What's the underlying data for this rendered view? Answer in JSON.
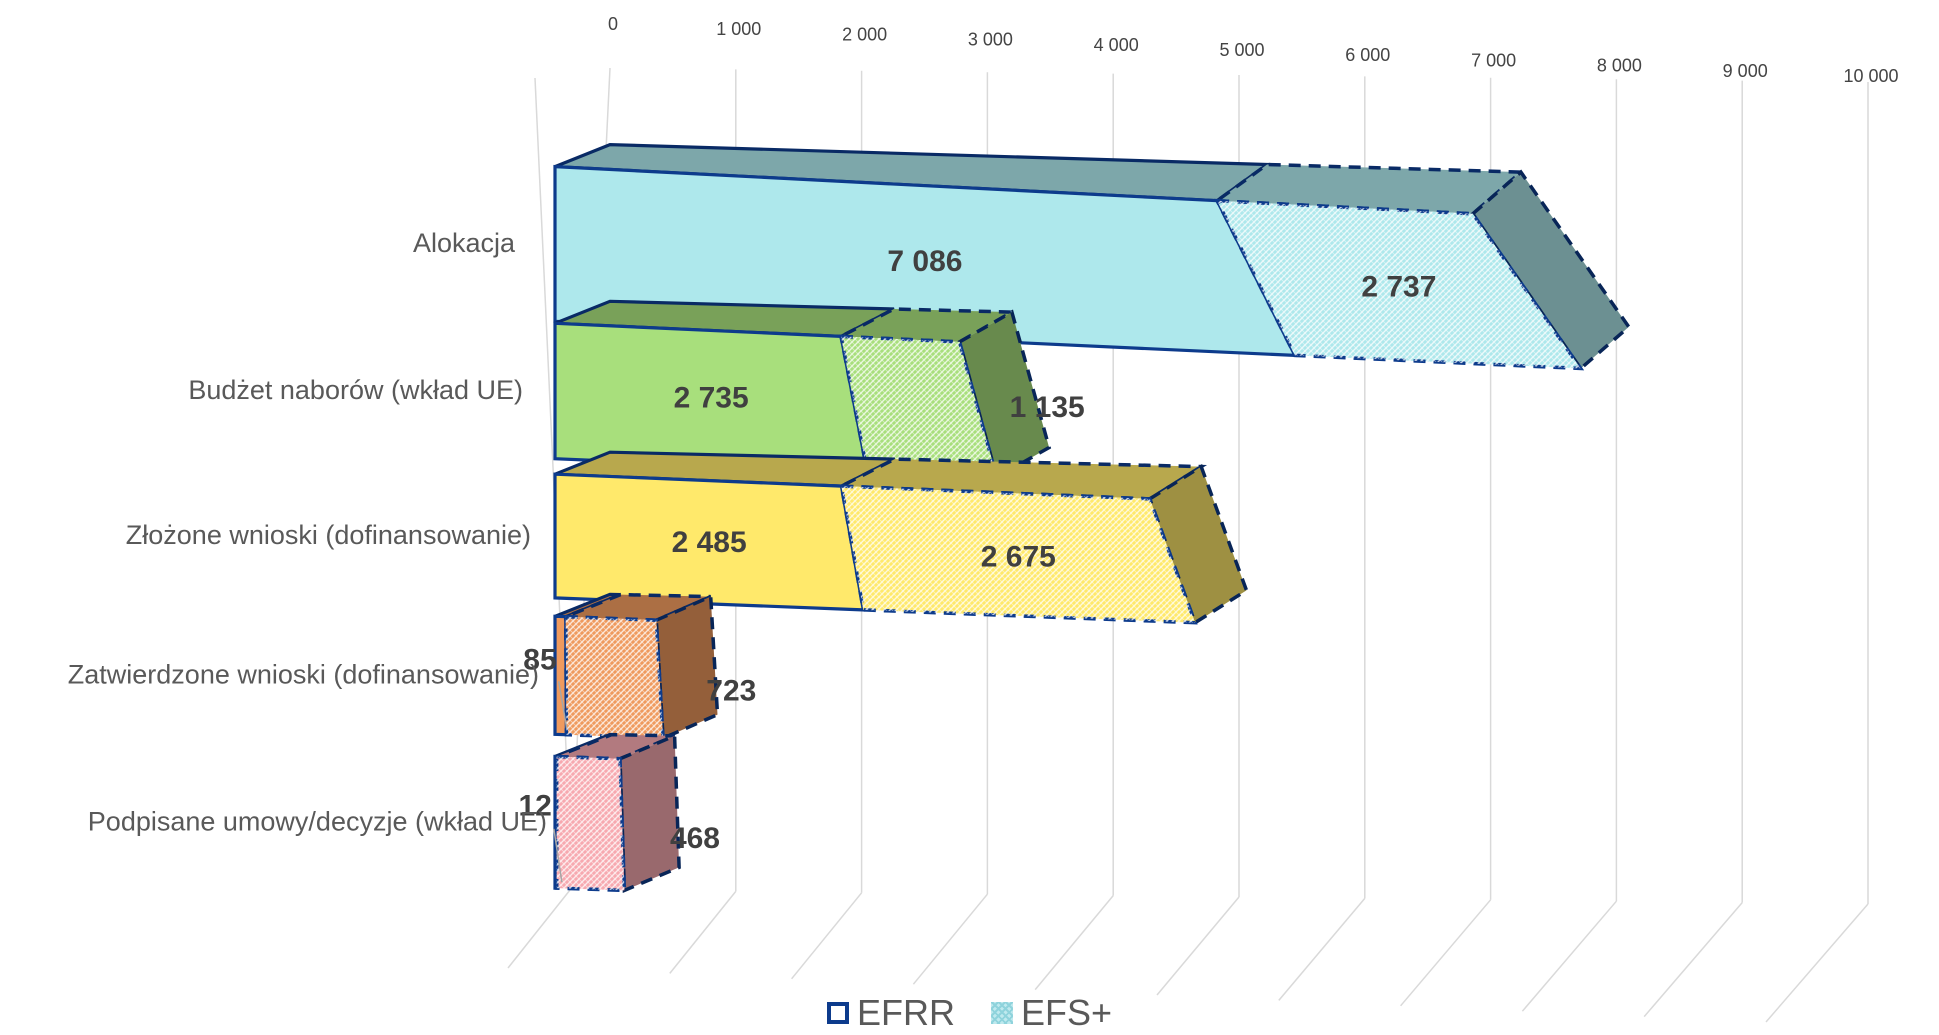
{
  "chart_data": {
    "type": "bar",
    "orientation": "horizontal",
    "stacked": true,
    "style": "3d",
    "categories": [
      "Alokacja",
      "Budżet naborów (wkład UE)",
      "Złożone wnioski (dofinansowanie)",
      "Zatwierdzone wnioski (dofinansowanie)",
      "Podpisane umowy/decyzje (wkład UE)"
    ],
    "series": [
      {
        "name": "EFRR",
        "values": [
          7086,
          2735,
          2485,
          85,
          12
        ],
        "labels": [
          "7 086",
          "2 735",
          "2 485",
          "85",
          "12"
        ]
      },
      {
        "name": "EFS+",
        "values": [
          2737,
          1135,
          2675,
          723,
          468
        ],
        "labels": [
          "2 737",
          "1 135",
          "2 675",
          "723",
          "468"
        ]
      }
    ],
    "xlim": [
      0,
      10000
    ],
    "ticks": [
      "0",
      "1 000",
      "2 000",
      "3 000",
      "4 000",
      "5 000",
      "6 000",
      "7 000",
      "8 000",
      "9 000",
      "10 000"
    ],
    "grid": true,
    "legend_position": "bottom",
    "category_colors": [
      "#aee8ec",
      "#a8df7c",
      "#ffe96b",
      "#ef9a5e",
      "#f7a9b0"
    ],
    "border_color": "#0d3b8c"
  },
  "legend": {
    "efrr": "EFRR",
    "efs": "EFS+"
  }
}
